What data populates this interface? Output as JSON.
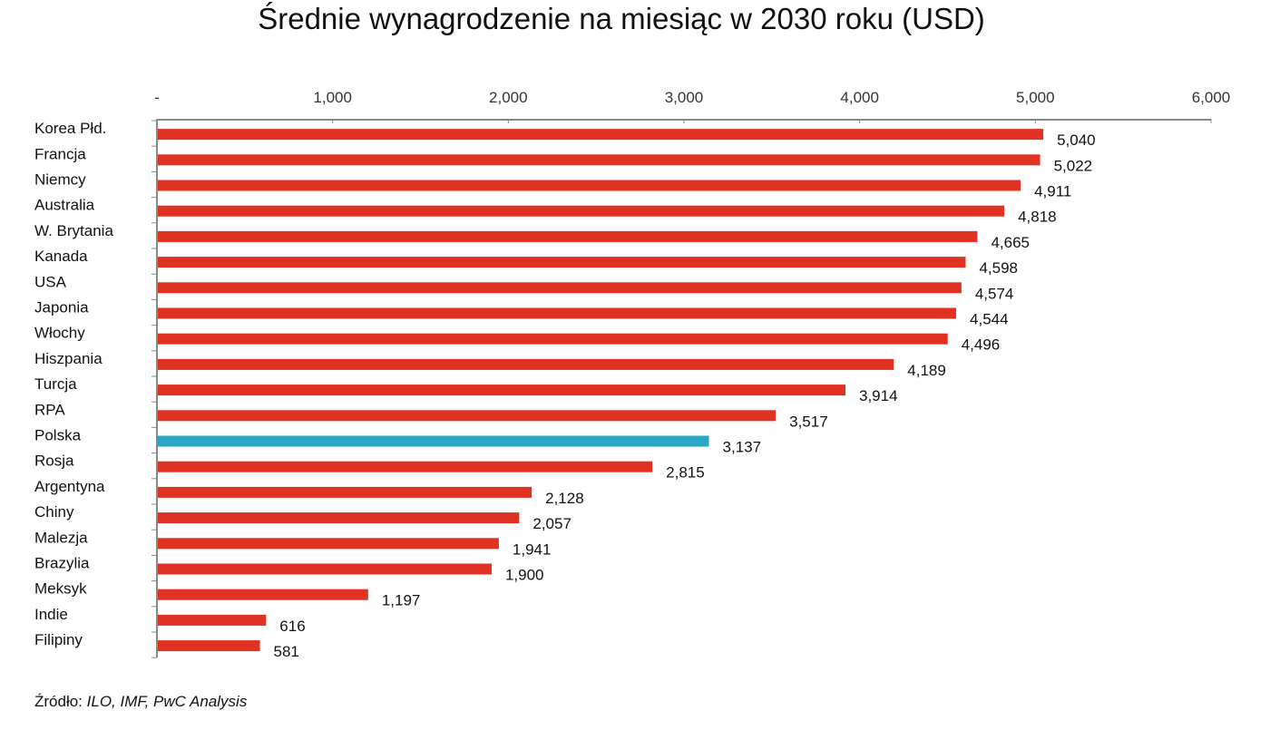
{
  "chart_data": {
    "type": "bar",
    "orientation": "horizontal",
    "title": "Średnie wynagrodzenie na miesiąc w 2030 roku (USD)",
    "categories": [
      "Korea Płd.",
      "Francja",
      "Niemcy",
      "Australia",
      "W. Brytania",
      "Kanada",
      "USA",
      "Japonia",
      "Włochy",
      "Hiszpania",
      "Turcja",
      "RPA",
      "Polska",
      "Rosja",
      "Argentyna",
      "Chiny",
      "Malezja",
      "Brazylia",
      "Meksyk",
      "Indie",
      "Filipiny"
    ],
    "values": [
      5040,
      5022,
      4911,
      4818,
      4665,
      4598,
      4574,
      4544,
      4496,
      4189,
      3914,
      3517,
      3137,
      2815,
      2128,
      2057,
      1941,
      1900,
      1197,
      616,
      581
    ],
    "value_labels": [
      "5,040",
      "5,022",
      "4,911",
      "4,818",
      "4,665",
      "4,598",
      "4,574",
      "4,544",
      "4,496",
      "4,189",
      "3,914",
      "3,517",
      "3,137",
      "2,815",
      "2,128",
      "2,057",
      "1,941",
      "1,900",
      "1,197",
      "616",
      "581"
    ],
    "xlim": [
      0,
      6000
    ],
    "x_ticks": [
      0,
      1000,
      2000,
      3000,
      4000,
      5000,
      6000
    ],
    "x_tick_labels": [
      "-",
      "1,000",
      "2,000",
      "3,000",
      "4,000",
      "5,000",
      "6,000"
    ],
    "axis_position": "top",
    "grid": false,
    "colors": {
      "default": "#e03222",
      "highlight": "#2aa7c6"
    },
    "highlight_category": "Polska"
  },
  "source": {
    "label": "Źródło:",
    "text": "ILO, IMF, PwC Analysis"
  }
}
